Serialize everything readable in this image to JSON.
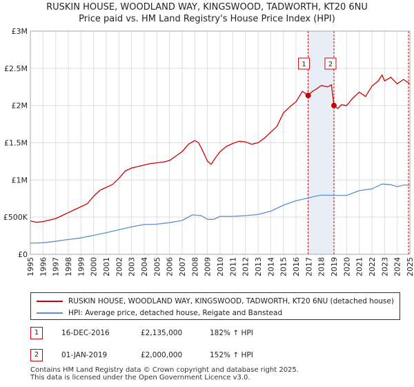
{
  "title_line1": "RUSKIN HOUSE, WOODLAND WAY, KINGSWOOD, TADWORTH, KT20 6NU",
  "title_line2": "Price paid vs. HM Land Registry's House Price Index (HPI)",
  "colors": {
    "property": "#cc0000",
    "hpi": "#5b8fcc",
    "shade": "#e8eef8",
    "grid": "#dddddd",
    "marker_line": "#cc0000"
  },
  "legend": {
    "property_label": "RUSKIN HOUSE, WOODLAND WAY, KINGSWOOD, TADWORTH, KT20 6NU (detached house)",
    "hpi_label": "HPI: Average price, detached house, Reigate and Banstead"
  },
  "transactions": [
    {
      "num": "1",
      "date": "16-DEC-2016",
      "price": "£2,135,000",
      "hpi": "182% ↑ HPI"
    },
    {
      "num": "2",
      "date": "01-JAN-2019",
      "price": "£2,000,000",
      "hpi": "152% ↑ HPI"
    }
  ],
  "footer_line1": "Contains HM Land Registry data © Crown copyright and database right 2025.",
  "footer_line2": "This data is licensed under the Open Government Licence v3.0.",
  "chart_data": {
    "type": "line",
    "title": "RUSKIN HOUSE, WOODLAND WAY, KINGSWOOD, TADWORTH, KT20 6NU — Price paid vs. HM Land Registry's House Price Index (HPI)",
    "xlabel": "",
    "ylabel": "",
    "xlim": [
      1995,
      2025
    ],
    "ylim": [
      0,
      3000000
    ],
    "y_ticks": [
      0,
      500000,
      1000000,
      1500000,
      2000000,
      2500000,
      3000000
    ],
    "y_tick_labels": [
      "£0",
      "£500K",
      "£1M",
      "£1.5M",
      "£2M",
      "£2.5M",
      "£3M"
    ],
    "x_ticks": [
      1995,
      1996,
      1997,
      1998,
      1999,
      2000,
      2001,
      2002,
      2003,
      2004,
      2005,
      2006,
      2007,
      2008,
      2009,
      2010,
      2011,
      2012,
      2013,
      2014,
      2015,
      2016,
      2017,
      2018,
      2019,
      2020,
      2021,
      2022,
      2023,
      2024,
      2025
    ],
    "x_tick_labels": [
      "1995",
      "1996",
      "1997",
      "1998",
      "1999",
      "2000",
      "2001",
      "2002",
      "2003",
      "2004",
      "2005",
      "2006",
      "2007",
      "2008",
      "2009",
      "2010",
      "2011",
      "2012",
      "2013",
      "2014",
      "2015",
      "2016",
      "2017",
      "2018",
      "2019",
      "2020",
      "2021",
      "2022",
      "2023",
      "2024",
      "2025"
    ],
    "grid": true,
    "series": [
      {
        "name": "RUSKIN HOUSE, WOODLAND WAY, KINGSWOOD, TADWORTH, KT20 6NU (detached house)",
        "x": [
          1995.0,
          1995.5,
          1996.0,
          1996.5,
          1997.0,
          1997.5,
          1998.0,
          1998.5,
          1999.0,
          1999.5,
          2000.0,
          2000.5,
          2001.0,
          2001.5,
          2002.0,
          2002.5,
          2003.0,
          2003.5,
          2004.0,
          2004.5,
          2005.0,
          2005.5,
          2006.0,
          2006.5,
          2007.0,
          2007.5,
          2008.0,
          2008.3,
          2008.6,
          2009.0,
          2009.3,
          2009.6,
          2010.0,
          2010.5,
          2011.0,
          2011.5,
          2012.0,
          2012.5,
          2013.0,
          2013.5,
          2014.0,
          2014.5,
          2015.0,
          2015.5,
          2016.0,
          2016.5,
          2016.96,
          2017.3,
          2017.6,
          2018.0,
          2018.5,
          2018.8,
          2019.0,
          2019.3,
          2019.6,
          2020.0,
          2020.5,
          2021.0,
          2021.5,
          2022.0,
          2022.5,
          2022.8,
          2023.0,
          2023.5,
          2024.0,
          2024.5,
          2025.0
        ],
        "y": [
          450000,
          430000,
          440000,
          460000,
          480000,
          520000,
          560000,
          600000,
          640000,
          680000,
          780000,
          860000,
          900000,
          940000,
          1020000,
          1120000,
          1160000,
          1180000,
          1200000,
          1220000,
          1230000,
          1240000,
          1260000,
          1320000,
          1380000,
          1480000,
          1530000,
          1500000,
          1400000,
          1250000,
          1210000,
          1290000,
          1380000,
          1450000,
          1490000,
          1520000,
          1510000,
          1480000,
          1500000,
          1560000,
          1640000,
          1720000,
          1900000,
          1980000,
          2050000,
          2190000,
          2135000,
          2190000,
          2220000,
          2270000,
          2250000,
          2280000,
          2000000,
          1960000,
          2010000,
          2000000,
          2100000,
          2180000,
          2120000,
          2260000,
          2330000,
          2410000,
          2330000,
          2380000,
          2290000,
          2350000,
          2290000
        ]
      },
      {
        "name": "HPI: Average price, detached house, Reigate and Banstead",
        "x": [
          1995.0,
          1996.0,
          1997.0,
          1998.0,
          1999.0,
          2000.0,
          2001.0,
          2002.0,
          2003.0,
          2004.0,
          2005.0,
          2006.0,
          2007.0,
          2007.8,
          2008.5,
          2009.0,
          2009.5,
          2010.0,
          2011.0,
          2012.0,
          2013.0,
          2014.0,
          2015.0,
          2016.0,
          2016.96,
          2017.5,
          2018.0,
          2019.0,
          2020.0,
          2021.0,
          2022.0,
          2022.8,
          2023.5,
          2024.0,
          2024.5,
          2025.0
        ],
        "y": [
          150000,
          155000,
          175000,
          200000,
          220000,
          255000,
          290000,
          330000,
          370000,
          400000,
          405000,
          425000,
          455000,
          530000,
          520000,
          470000,
          470000,
          510000,
          510000,
          520000,
          535000,
          580000,
          660000,
          720000,
          757000,
          780000,
          795000,
          793000,
          790000,
          855000,
          880000,
          945000,
          935000,
          910000,
          930000,
          930000
        ]
      }
    ],
    "transactions": [
      {
        "label": "1",
        "x": 2016.96,
        "y": 2135000
      },
      {
        "label": "2",
        "x": 2019.0,
        "y": 2000000
      }
    ],
    "shaded_period": [
      2016.96,
      2019.0
    ]
  }
}
